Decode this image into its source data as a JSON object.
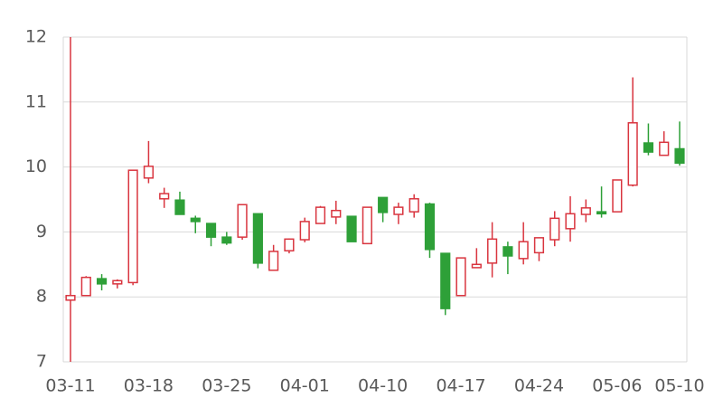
{
  "chart_data": {
    "type": "candlestick",
    "categories": [
      "03-11",
      null,
      null,
      null,
      null,
      "03-18",
      null,
      null,
      null,
      null,
      "03-25",
      null,
      null,
      null,
      null,
      "04-01",
      null,
      null,
      null,
      null,
      "04-10",
      null,
      null,
      null,
      null,
      "04-17",
      null,
      null,
      null,
      null,
      "04-24",
      null,
      null,
      null,
      null,
      "05-06",
      null,
      null,
      null,
      "05-10"
    ],
    "open": [
      7.95,
      8.02,
      8.28,
      8.2,
      8.22,
      9.83,
      9.51,
      9.49,
      9.21,
      9.13,
      8.92,
      8.92,
      9.28,
      8.41,
      8.71,
      8.88,
      9.13,
      9.23,
      9.24,
      8.82,
      9.53,
      9.27,
      9.31,
      9.43,
      8.67,
      8.02,
      8.45,
      8.52,
      8.77,
      8.59,
      8.68,
      8.88,
      9.05,
      9.27,
      9.31,
      9.31,
      9.72,
      10.37,
      10.18,
      10.28
    ],
    "high": [
      12.0,
      8.32,
      8.35,
      8.27,
      9.95,
      10.4,
      9.68,
      9.62,
      9.25,
      9.13,
      9.0,
      9.42,
      9.28,
      8.8,
      8.9,
      9.22,
      9.4,
      9.48,
      9.24,
      9.38,
      9.53,
      9.45,
      9.58,
      9.45,
      8.67,
      8.6,
      8.75,
      9.15,
      8.85,
      9.15,
      8.91,
      9.32,
      9.55,
      9.5,
      9.7,
      9.8,
      11.38,
      10.67,
      10.55,
      10.7
    ],
    "low": [
      7.0,
      8.02,
      8.1,
      8.13,
      8.18,
      9.75,
      9.37,
      9.27,
      8.98,
      8.78,
      8.8,
      8.88,
      8.44,
      8.41,
      8.67,
      8.84,
      9.13,
      9.12,
      8.85,
      8.82,
      9.15,
      9.12,
      9.22,
      8.6,
      7.72,
      8.02,
      8.45,
      8.3,
      8.35,
      8.5,
      8.55,
      8.78,
      8.85,
      9.15,
      9.22,
      9.31,
      9.7,
      10.18,
      10.18,
      10.02
    ],
    "close": [
      8.02,
      8.3,
      8.2,
      8.25,
      9.95,
      10.01,
      9.59,
      9.27,
      9.16,
      8.92,
      8.83,
      9.42,
      8.52,
      8.7,
      8.89,
      9.16,
      9.38,
      9.33,
      8.85,
      9.38,
      9.3,
      9.38,
      9.51,
      8.73,
      7.82,
      8.6,
      8.5,
      8.89,
      8.63,
      8.85,
      8.91,
      9.21,
      9.28,
      9.37,
      9.28,
      9.8,
      10.68,
      10.23,
      10.38,
      10.06
    ],
    "up_color": "#d9353f",
    "down_color": "#2ea038",
    "ylim": [
      7,
      12
    ],
    "yticks": [
      7,
      8,
      9,
      10,
      11,
      12
    ],
    "grid": true
  }
}
